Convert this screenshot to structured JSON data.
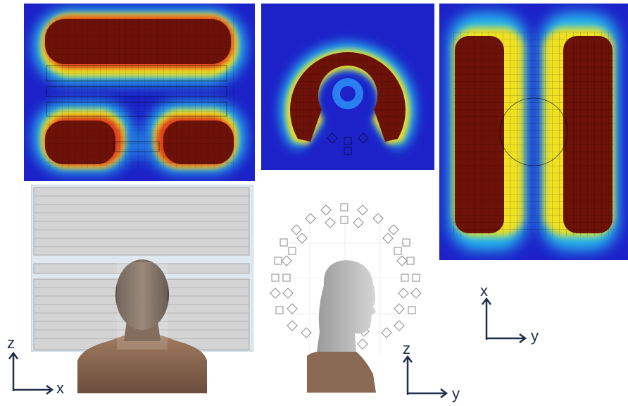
{
  "axes": {
    "front": {
      "vertical": "z",
      "horizontal": "x"
    },
    "side": {
      "vertical": "z",
      "horizontal": "y"
    },
    "top": {
      "vertical": "x",
      "horizontal": "y"
    }
  },
  "colors": {
    "field_low": "#1c22c8",
    "field_mid": "#25c0f0",
    "field_high": "#6d1208",
    "axis_arrow": "#1f2f4a",
    "coil_panel": "#d4d4d4",
    "skin": "#8a6a52"
  }
}
